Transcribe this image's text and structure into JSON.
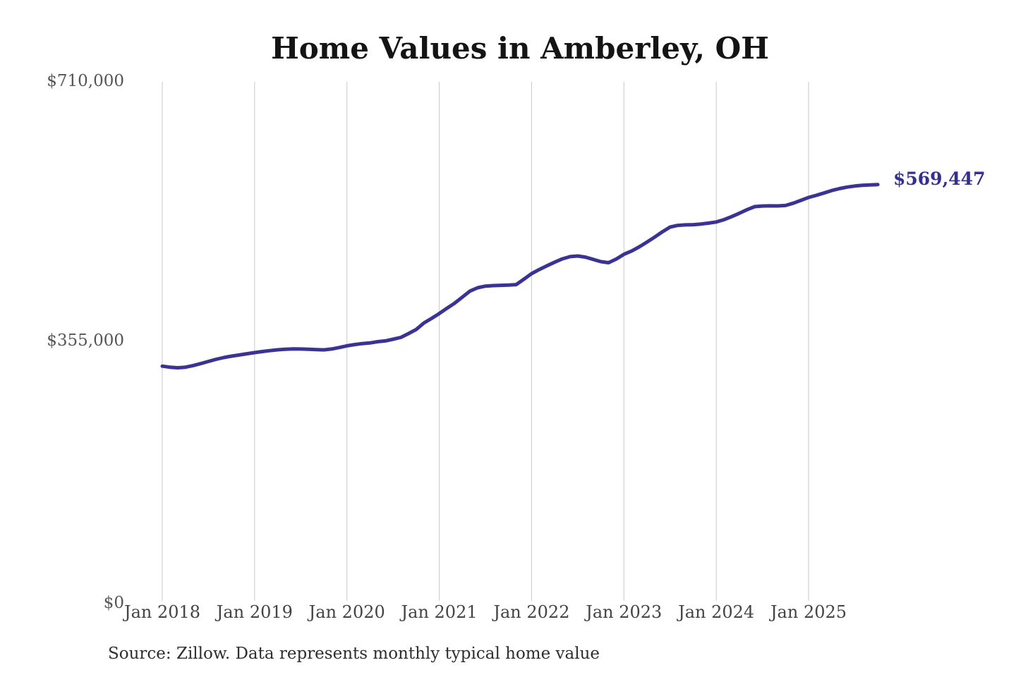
{
  "chart_data": {
    "type": "line",
    "title": "Home Values in Amberley, OH",
    "source_note": "Source: Zillow. Data represents monthly typical home value",
    "end_label": "$569,447",
    "end_value": 569447,
    "unit": "USD",
    "frequency": "monthly",
    "start_month": "2018-01",
    "end_month": "2025-10",
    "x_tick_labels": [
      "Jan 2018",
      "Jan 2019",
      "Jan 2020",
      "Jan 2021",
      "Jan 2022",
      "Jan 2023",
      "Jan 2024",
      "Jan 2025"
    ],
    "y_tick_labels": [
      "$710,000",
      "$355,000",
      "$0"
    ],
    "y_ticks": [
      710000,
      355000,
      0
    ],
    "ylim": [
      0,
      710000
    ],
    "grid": "vertical-only",
    "legend": "none",
    "series": [
      {
        "name": "Typical home value",
        "values": [
          321000,
          319600,
          318800,
          319600,
          321800,
          324500,
          327500,
          330400,
          332800,
          334700,
          336300,
          338000,
          339600,
          341000,
          342300,
          343400,
          344200,
          344600,
          344500,
          344100,
          343600,
          343300,
          344500,
          346500,
          348800,
          350600,
          351900,
          352800,
          354500,
          355600,
          357900,
          360300,
          365600,
          371200,
          380100,
          386400,
          393000,
          400200,
          407200,
          415500,
          423800,
          428300,
          430500,
          431200,
          431600,
          431900,
          432600,
          440000,
          447600,
          453200,
          458300,
          463200,
          467800,
          470900,
          471700,
          470200,
          467100,
          464000,
          462600,
          467500,
          474000,
          478600,
          484300,
          490800,
          497600,
          504800,
          511300,
          513600,
          514300,
          514600,
          515400,
          516700,
          518200,
          521400,
          525600,
          530200,
          535100,
          539300,
          540100,
          540300,
          540200,
          540800,
          543900,
          547800,
          551800,
          554700,
          557900,
          561200,
          563900,
          566000,
          567400,
          568400,
          569000,
          569447
        ]
      }
    ],
    "colors": {
      "line": "#3a3394",
      "end_label": "#33308f",
      "grid": "#c9c9c9",
      "x_tick_text": "#444444",
      "y_tick_text": "#555555",
      "title": "#141414",
      "source_text": "#2e2e2e",
      "background": "#ffffff"
    }
  }
}
